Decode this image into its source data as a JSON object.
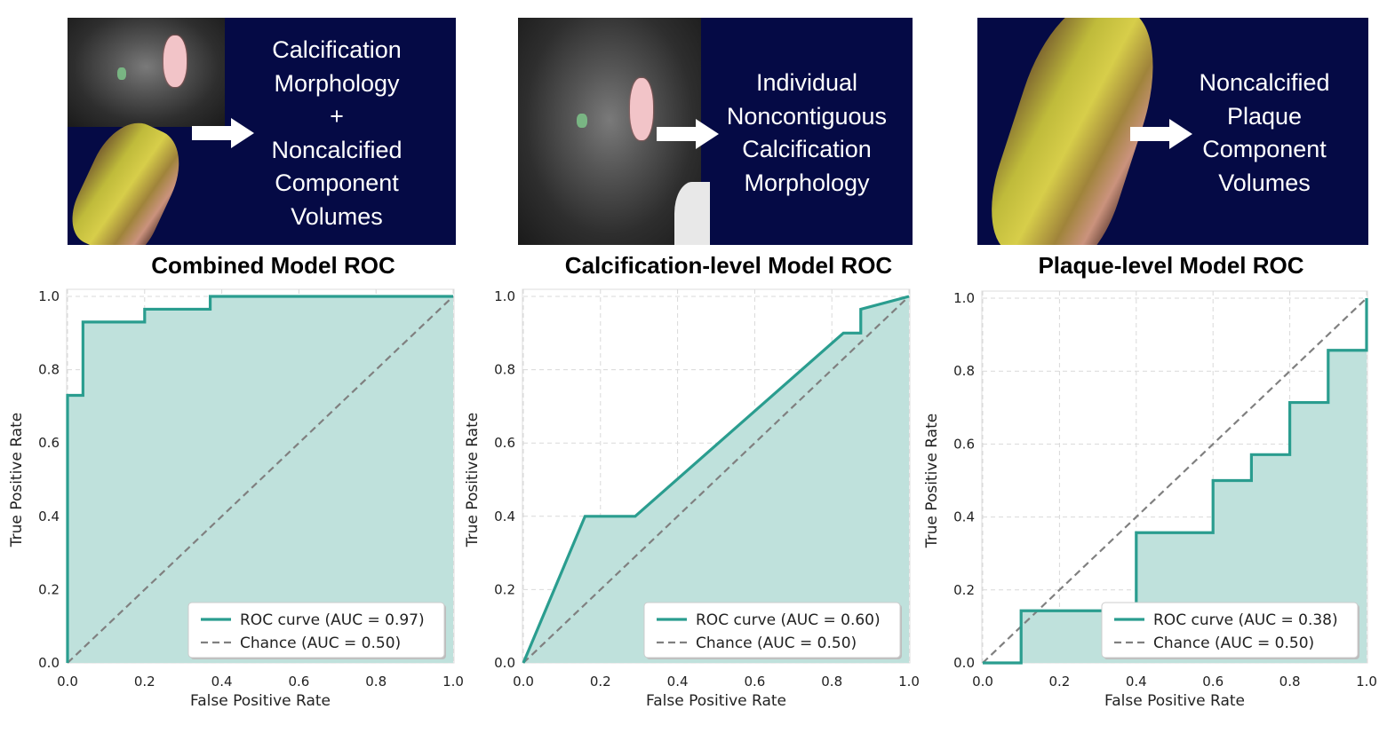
{
  "images": [
    {
      "lines": [
        "Calcification",
        "Morphology",
        "+",
        "Noncalcified",
        "Component",
        "Volumes"
      ]
    },
    {
      "lines": [
        "Individual",
        "Noncontiguous",
        "Calcification",
        "Morphology"
      ]
    },
    {
      "lines": [
        "Noncalcified",
        "Plaque",
        "Component",
        "Volumes"
      ]
    }
  ],
  "colors": {
    "roc": "#2a9d8f",
    "fill": "#bfe1dc",
    "chance": "#808080",
    "bg_dark": "#050a45"
  },
  "chart_data": [
    {
      "type": "line",
      "title": "Combined Model ROC",
      "xlabel": "False Positive Rate",
      "ylabel": "True Positive Rate",
      "xlim": [
        0,
        1
      ],
      "ylim": [
        0,
        1
      ],
      "xticks": [
        "0.0",
        "0.2",
        "0.4",
        "0.6",
        "0.8",
        "1.0"
      ],
      "yticks": [
        "0.0",
        "0.2",
        "0.4",
        "0.6",
        "0.8",
        "1.0"
      ],
      "grid": true,
      "legend_position": "lower-right",
      "series": [
        {
          "name": "ROC curve (AUC = 0.97)",
          "style": "solid",
          "x": [
            0,
            0,
            0.04,
            0.04,
            0.2,
            0.2,
            0.37,
            0.37,
            1.0
          ],
          "y": [
            0,
            0.73,
            0.73,
            0.93,
            0.93,
            0.965,
            0.965,
            1.0,
            1.0
          ]
        },
        {
          "name": "Chance (AUC = 0.50)",
          "style": "dashed",
          "x": [
            0,
            1
          ],
          "y": [
            0,
            1
          ]
        }
      ]
    },
    {
      "type": "line",
      "title": "Calcification-level Model ROC",
      "xlabel": "False Positive Rate",
      "ylabel": "True Positive Rate",
      "xlim": [
        0,
        1
      ],
      "ylim": [
        0,
        1
      ],
      "xticks": [
        "0.0",
        "0.2",
        "0.4",
        "0.6",
        "0.8",
        "1.0"
      ],
      "yticks": [
        "0.0",
        "0.2",
        "0.4",
        "0.6",
        "0.8",
        "1.0"
      ],
      "grid": true,
      "legend_position": "lower-right",
      "series": [
        {
          "name": "ROC curve (AUC = 0.60)",
          "style": "solid",
          "x": [
            0,
            0.16,
            0.29,
            0.83,
            0.875,
            0.875,
            1.0
          ],
          "y": [
            0,
            0.4,
            0.4,
            0.9,
            0.9,
            0.965,
            1.0
          ]
        },
        {
          "name": "Chance (AUC = 0.50)",
          "style": "dashed",
          "x": [
            0,
            1
          ],
          "y": [
            0,
            1
          ]
        }
      ]
    },
    {
      "type": "line",
      "title": "Plaque-level Model ROC",
      "xlabel": "False Positive Rate",
      "ylabel": "True Positive Rate",
      "xlim": [
        0,
        1
      ],
      "ylim": [
        0,
        1
      ],
      "xticks": [
        "0.0",
        "0.2",
        "0.4",
        "0.6",
        "0.8",
        "1.0"
      ],
      "yticks": [
        "0.0",
        "0.2",
        "0.4",
        "0.6",
        "0.8",
        "1.0"
      ],
      "grid": true,
      "legend_position": "lower-right",
      "series": [
        {
          "name": "ROC curve (AUC = 0.38)",
          "style": "solid",
          "x": [
            0,
            0.1,
            0.1,
            0.4,
            0.4,
            0.6,
            0.6,
            0.7,
            0.7,
            0.8,
            0.8,
            0.9,
            0.9,
            1.0,
            1.0
          ],
          "y": [
            0,
            0,
            0.143,
            0.143,
            0.357,
            0.357,
            0.5,
            0.5,
            0.571,
            0.571,
            0.714,
            0.714,
            0.857,
            0.857,
            1.0
          ]
        },
        {
          "name": "Chance (AUC = 0.50)",
          "style": "dashed",
          "x": [
            0,
            1
          ],
          "y": [
            0,
            1
          ]
        }
      ]
    }
  ]
}
